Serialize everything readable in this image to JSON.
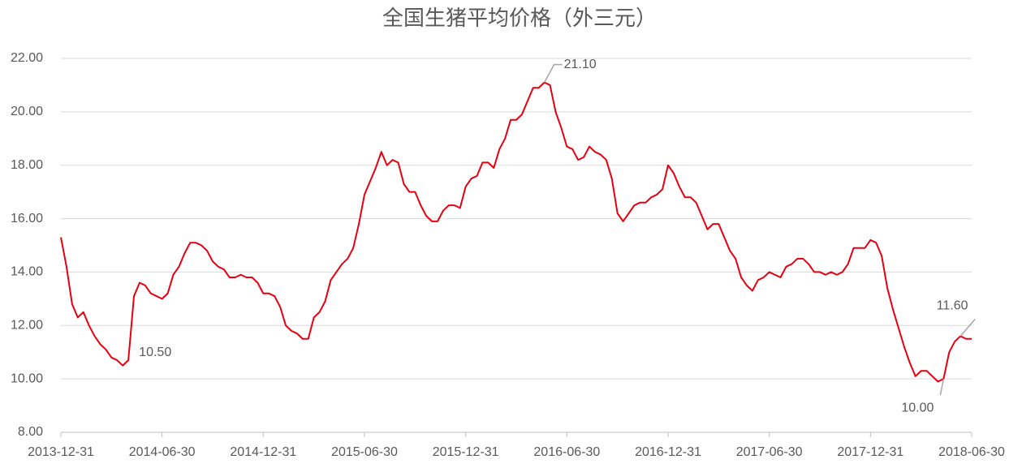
{
  "chart_data": {
    "type": "line",
    "title": "全国生猪平均价格（外三元）",
    "categories": [
      "2013-12-31",
      null,
      null,
      null,
      null,
      null,
      null,
      null,
      null,
      null,
      null,
      null,
      null,
      null,
      null,
      null,
      null,
      null,
      "2014-06-30",
      null,
      null,
      null,
      null,
      null,
      null,
      null,
      null,
      null,
      null,
      null,
      null,
      null,
      null,
      null,
      null,
      null,
      "2014-12-31",
      null,
      null,
      null,
      null,
      null,
      null,
      null,
      null,
      null,
      null,
      null,
      null,
      null,
      null,
      null,
      null,
      null,
      "2015-06-30",
      null,
      null,
      null,
      null,
      null,
      null,
      null,
      null,
      null,
      null,
      null,
      null,
      null,
      null,
      null,
      null,
      null,
      "2015-12-31",
      null,
      null,
      null,
      null,
      null,
      null,
      null,
      null,
      null,
      null,
      null,
      null,
      null,
      null,
      null,
      null,
      null,
      "2016-06-30",
      null,
      null,
      null,
      null,
      null,
      null,
      null,
      null,
      null,
      null,
      null,
      null,
      null,
      null,
      null,
      null,
      null,
      "2016-12-31",
      null,
      null,
      null,
      null,
      null,
      null,
      null,
      null,
      null,
      null,
      null,
      null,
      null,
      null,
      null,
      null,
      null,
      "2017-06-30",
      null,
      null,
      null,
      null,
      null,
      null,
      null,
      null,
      null,
      null,
      null,
      null,
      null,
      null,
      null,
      null,
      null,
      "2017-12-31",
      null,
      null,
      null,
      null,
      null,
      null,
      null,
      null,
      null,
      null,
      null,
      null,
      null,
      null,
      null,
      null,
      null,
      "2018-06-30"
    ],
    "series": [
      {
        "color": "#e60012",
        "values": [
          15.3,
          14.2,
          12.8,
          12.3,
          12.5,
          12.0,
          11.6,
          11.3,
          11.1,
          10.8,
          10.7,
          10.5,
          10.7,
          13.1,
          13.6,
          13.5,
          13.2,
          13.1,
          13.0,
          13.2,
          13.9,
          14.2,
          14.7,
          15.1,
          15.1,
          15.0,
          14.8,
          14.4,
          14.2,
          14.1,
          13.8,
          13.8,
          13.9,
          13.8,
          13.8,
          13.6,
          13.2,
          13.2,
          13.1,
          12.7,
          12.0,
          11.8,
          11.7,
          11.5,
          11.5,
          12.3,
          12.5,
          12.9,
          13.7,
          14.0,
          14.3,
          14.5,
          14.9,
          15.8,
          16.9,
          17.4,
          17.9,
          18.5,
          18.0,
          18.2,
          18.1,
          17.3,
          17.0,
          17.0,
          16.5,
          16.1,
          15.9,
          15.9,
          16.3,
          16.5,
          16.5,
          16.4,
          17.2,
          17.5,
          17.6,
          18.1,
          18.1,
          17.9,
          18.6,
          19.0,
          19.7,
          19.7,
          19.9,
          20.4,
          20.9,
          20.9,
          21.1,
          21.0,
          20.0,
          19.4,
          18.7,
          18.6,
          18.2,
          18.3,
          18.7,
          18.5,
          18.4,
          18.2,
          17.5,
          16.2,
          15.9,
          16.2,
          16.5,
          16.6,
          16.6,
          16.8,
          16.9,
          17.1,
          18.0,
          17.7,
          17.2,
          16.8,
          16.8,
          16.6,
          16.1,
          15.6,
          15.8,
          15.8,
          15.3,
          14.8,
          14.5,
          13.8,
          13.5,
          13.3,
          13.7,
          13.8,
          14.0,
          13.9,
          13.8,
          14.2,
          14.3,
          14.5,
          14.5,
          14.3,
          14.0,
          14.0,
          13.9,
          14.0,
          13.9,
          14.0,
          14.3,
          14.9,
          14.9,
          14.9,
          15.2,
          15.1,
          14.6,
          13.4,
          12.6,
          11.9,
          11.2,
          10.6,
          10.1,
          10.3,
          10.3,
          10.1,
          9.9,
          10.0,
          11.0,
          11.4,
          11.6,
          11.5,
          11.5
        ],
        "value_labels": [
          null,
          null,
          null,
          null,
          null,
          null,
          null,
          null,
          null,
          null,
          null,
          "10.50",
          null,
          null,
          null,
          null,
          null,
          null,
          null,
          null,
          null,
          null,
          null,
          null,
          null,
          null,
          null,
          null,
          null,
          null,
          null,
          null,
          null,
          null,
          null,
          null,
          null,
          null,
          null,
          null,
          null,
          null,
          null,
          null,
          null,
          null,
          null,
          null,
          null,
          null,
          null,
          null,
          null,
          null,
          null,
          null,
          null,
          null,
          null,
          null,
          null,
          null,
          null,
          null,
          null,
          null,
          null,
          null,
          null,
          null,
          null,
          null,
          null,
          null,
          null,
          null,
          null,
          null,
          null,
          null,
          null,
          null,
          null,
          null,
          null,
          null,
          "21.10",
          null,
          null,
          null,
          null,
          null,
          null,
          null,
          null,
          null,
          null,
          null,
          null,
          null,
          null,
          null,
          null,
          null,
          null,
          null,
          null,
          null,
          null,
          null,
          null,
          null,
          null,
          null,
          null,
          null,
          null,
          null,
          null,
          null,
          null,
          null,
          null,
          null,
          null,
          null,
          null,
          null,
          null,
          null,
          null,
          null,
          null,
          null,
          null,
          null,
          null,
          null,
          null,
          null,
          null,
          null,
          null,
          null,
          null,
          null,
          null,
          null,
          null,
          null,
          null,
          null,
          null,
          null,
          null,
          null,
          null,
          "10.00",
          null,
          null,
          "11.60",
          null,
          null
        ]
      }
    ],
    "ylim": [
      8,
      22
    ],
    "yticks": [
      {
        "value": 8,
        "label": "8.00"
      },
      {
        "value": 10,
        "label": "10.00"
      },
      {
        "value": 12,
        "label": "12.00"
      },
      {
        "value": 14,
        "label": "14.00"
      },
      {
        "value": 16,
        "label": "16.00"
      },
      {
        "value": 18,
        "label": "18.00"
      },
      {
        "value": 20,
        "label": "20.00"
      },
      {
        "value": 22,
        "label": "22.00"
      }
    ],
    "grid": true
  }
}
